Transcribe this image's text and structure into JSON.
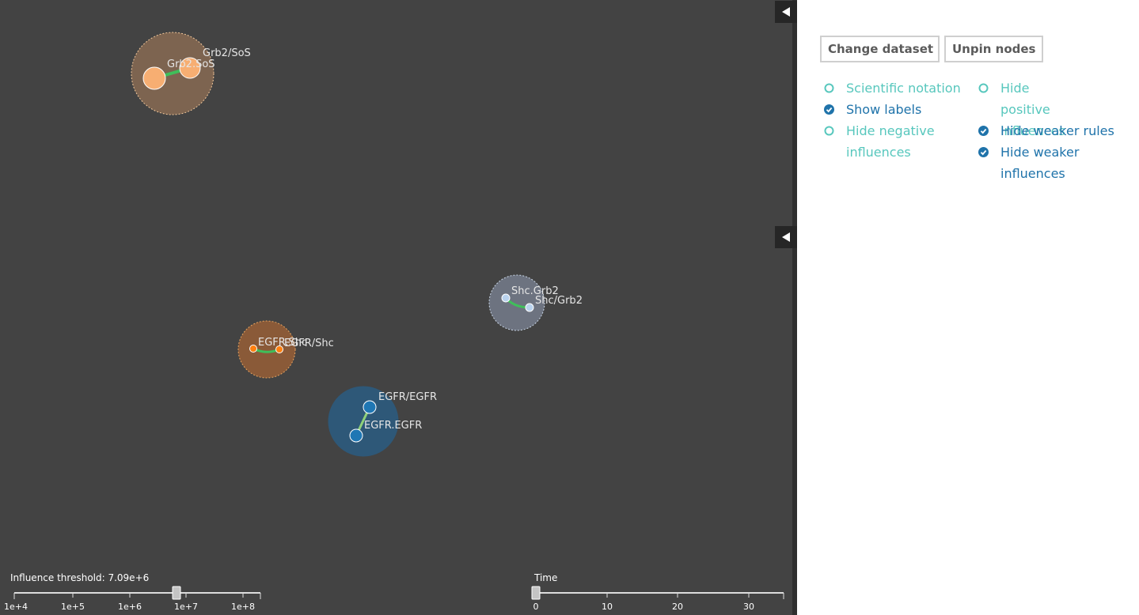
{
  "graph": {
    "nodes": [
      {
        "id": "grb2-sos-state",
        "label": "Grb2.SoS",
        "color": "#f7ae72"
      },
      {
        "id": "grb2-sos-rule",
        "label": "Grb2/SoS",
        "color": "#f7ae72"
      },
      {
        "id": "shc-grb2-state",
        "label": "Shc.Grb2",
        "color": "#b9d2ee"
      },
      {
        "id": "shc-grb2-rule",
        "label": "Shc/Grb2",
        "color": "#b9d2ee"
      },
      {
        "id": "egfr-shc-state",
        "label": "EGFR.Shc",
        "color": "#ff7f0e"
      },
      {
        "id": "egfr-shc-rule",
        "label": "EGFR/Shc",
        "color": "#ff7f0e"
      },
      {
        "id": "egfr-egfr-rule",
        "label": "EGFR/EGFR",
        "color": "#1f77b4"
      },
      {
        "id": "egfr-egfr-state",
        "label": "EGFR.EGFR",
        "color": "#1f77b4"
      }
    ]
  },
  "influence_slider": {
    "label": "Influence threshold: 7.09e+6",
    "ticks": [
      "1e+4",
      "1e+5",
      "1e+6",
      "1e+7",
      "1e+8"
    ]
  },
  "time_slider": {
    "label": "Time",
    "ticks": [
      "0",
      "10",
      "20",
      "30"
    ]
  },
  "buttons": {
    "change_dataset": "Change dataset",
    "unpin_nodes": "Unpin nodes"
  },
  "options": {
    "scientific_notation": {
      "label": "Scientific notation",
      "checked": false
    },
    "show_labels": {
      "label": "Show labels",
      "checked": true
    },
    "hide_negative": {
      "label": "Hide negative influences",
      "checked": false
    },
    "hide_positive": {
      "label": "Hide positive influences",
      "checked": false
    },
    "hide_weaker_rules": {
      "label": "Hide weaker rules",
      "checked": true
    },
    "hide_weaker_influences": {
      "label": "Hide weaker influences",
      "checked": true
    }
  },
  "colors": {
    "graph_bg": "#434343",
    "option_on": "#1f73aa",
    "option_off": "#57c7bd",
    "edge": "#3fbf5a"
  }
}
